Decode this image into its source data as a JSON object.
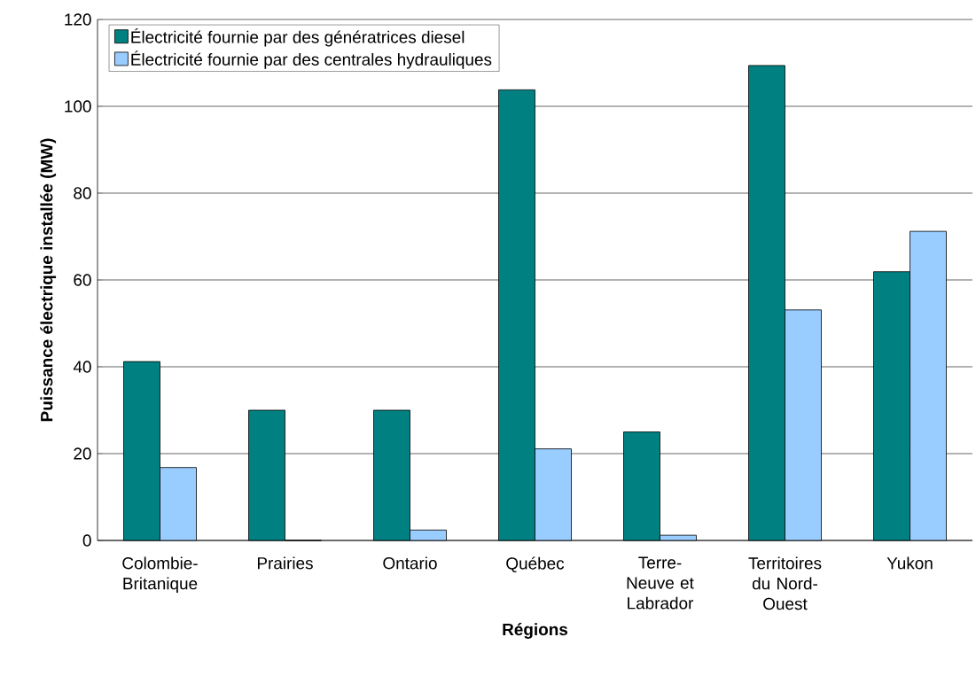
{
  "chart_data": {
    "type": "bar",
    "xlabel": "Régions",
    "ylabel": "Puissance électrique installée (MW)",
    "categories": [
      "Colombie-Britanique",
      "Prairies",
      "Ontario",
      "Québec",
      "Terre-Neuve et Labrador",
      "Territoires du Nord-Ouest",
      "Yukon"
    ],
    "series": [
      {
        "name": "Électricité fournie par des génératrices diesel",
        "color": "#008080",
        "values": [
          41.2,
          30,
          30,
          103.8,
          25,
          109.4,
          61.9
        ]
      },
      {
        "name": "Électricité fournie par des centrales hydrauliques",
        "color": "#99ccff",
        "values": [
          16.8,
          0,
          2.4,
          21.1,
          1.2,
          53.1,
          71.2
        ]
      }
    ],
    "ylim": [
      0,
      120
    ],
    "yticks": [
      0,
      20,
      40,
      60,
      80,
      100,
      120
    ],
    "grid": "y",
    "legend": "top left"
  }
}
